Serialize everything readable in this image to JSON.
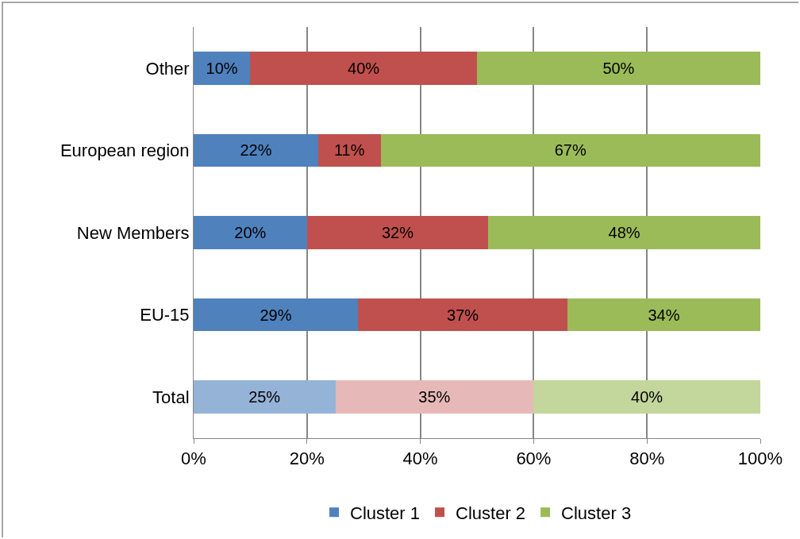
{
  "chart_data": {
    "type": "bar",
    "orientation": "horizontal",
    "stacked": true,
    "categories": [
      "Other",
      "European region",
      "New Members",
      "EU-15",
      "Total"
    ],
    "series": [
      {
        "name": "Cluster 1",
        "color": "#4f81bd",
        "colors": [
          null,
          null,
          null,
          null,
          "#95b3d7"
        ],
        "values": [
          10,
          22,
          20,
          29,
          25
        ],
        "value_labels": [
          "10%",
          "22%",
          "20%",
          "29%",
          "25%"
        ]
      },
      {
        "name": "Cluster 2",
        "color": "#c0504d",
        "colors": [
          null,
          null,
          null,
          null,
          "#e6b9b8"
        ],
        "values": [
          40,
          11,
          32,
          37,
          35
        ],
        "value_labels": [
          "40%",
          "11%",
          "32%",
          "37%",
          "35%"
        ]
      },
      {
        "name": "Cluster 3",
        "color": "#9bbb59",
        "colors": [
          null,
          null,
          null,
          null,
          "#c3d69b"
        ],
        "values": [
          50,
          67,
          48,
          34,
          40
        ],
        "value_labels": [
          "50%",
          "67%",
          "48%",
          "34%",
          "40%"
        ]
      }
    ],
    "xlim": [
      0,
      100
    ],
    "xticks": [
      {
        "value": 0,
        "label": "0%"
      },
      {
        "value": 20,
        "label": "20%"
      },
      {
        "value": 40,
        "label": "40%"
      },
      {
        "value": 60,
        "label": "60%"
      },
      {
        "value": 80,
        "label": "80%"
      },
      {
        "value": 100,
        "label": "100%"
      }
    ],
    "grid": "x",
    "legend": "bottom"
  }
}
